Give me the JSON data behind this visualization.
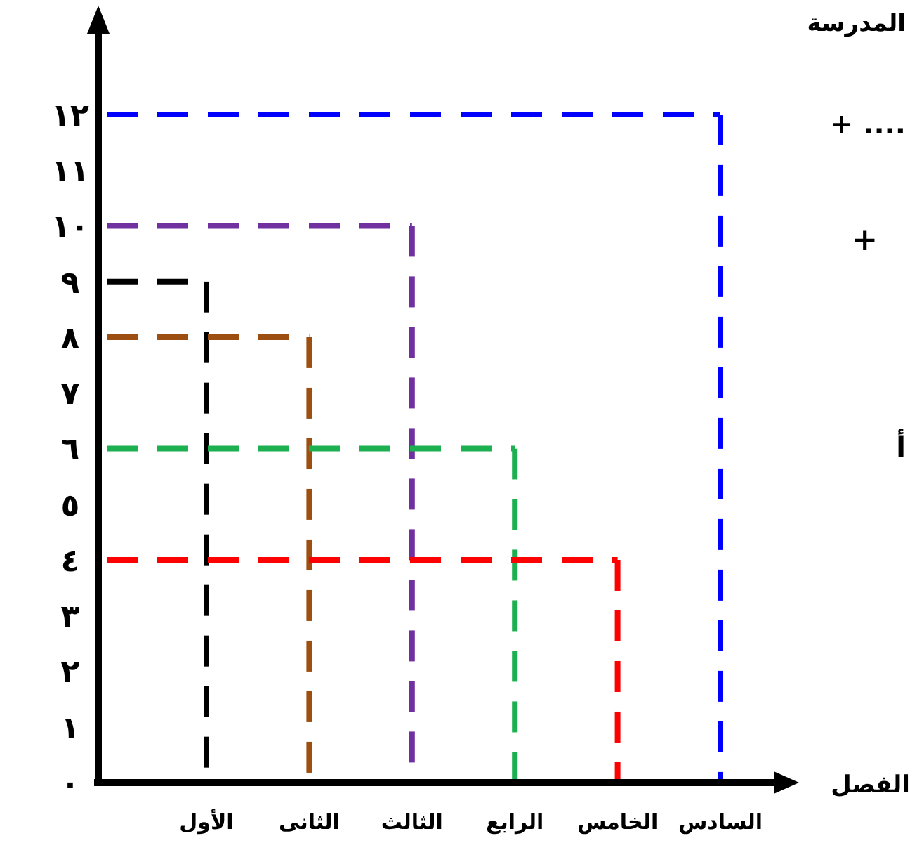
{
  "chart_data": {
    "type": "bar",
    "xlabel": "الفصل",
    "categories": [
      "الأول",
      "الثانى",
      "الثالث",
      "الرابع",
      "الخامس",
      "السادس"
    ],
    "values": [
      9,
      8,
      10,
      6,
      4,
      12
    ],
    "colors": [
      "#000000",
      "#9c4f10",
      "#7030a0",
      "#1db050",
      "#ff0000",
      "#0000ff"
    ],
    "line_style": "dashed",
    "ylim": [
      0,
      13.5
    ],
    "yticks": [
      {
        "value": 0,
        "label": "٠"
      },
      {
        "value": 1,
        "label": "١"
      },
      {
        "value": 2,
        "label": "٢"
      },
      {
        "value": 3,
        "label": "٣"
      },
      {
        "value": 4,
        "label": "٤"
      },
      {
        "value": 5,
        "label": "٥"
      },
      {
        "value": 6,
        "label": "٦"
      },
      {
        "value": 7,
        "label": "٧"
      },
      {
        "value": 8,
        "label": "٨"
      },
      {
        "value": 9,
        "label": "٩"
      },
      {
        "value": 10,
        "label": "١٠"
      },
      {
        "value": 11,
        "label": "١١"
      },
      {
        "value": 12,
        "label": "١٢"
      }
    ],
    "ref_lines": [
      {
        "axis": "y",
        "value": 9,
        "color": "#000000",
        "line_style": "dashed"
      },
      {
        "axis": "y",
        "value": 8,
        "color": "#9c4f10",
        "line_style": "dashed"
      },
      {
        "axis": "y",
        "value": 10,
        "color": "#7030a0",
        "line_style": "dashed"
      },
      {
        "axis": "y",
        "value": 6,
        "color": "#1db050",
        "line_style": "dashed"
      },
      {
        "axis": "y",
        "value": 4,
        "color": "#ff0000",
        "line_style": "dashed"
      },
      {
        "axis": "y",
        "value": 12,
        "color": "#0000ff",
        "line_style": "dashed"
      }
    ],
    "annotations": [
      "المدرسة",
      "+ ....",
      "+",
      "أ"
    ],
    "grid": false
  }
}
